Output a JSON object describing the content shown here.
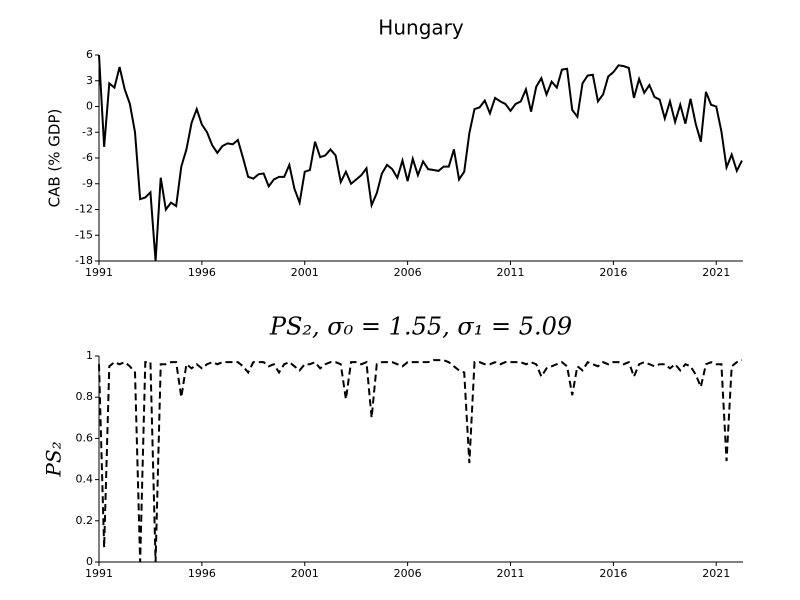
{
  "chart_data": [
    {
      "type": "line",
      "title": "Hungary",
      "ylabel": "CAB (% GDP)",
      "color": "#000000",
      "linestyle": "solid",
      "x": [
        1991,
        1991.25,
        1991.5,
        1991.75,
        1992,
        1992.25,
        1992.5,
        1992.75,
        1993,
        1993.25,
        1993.5,
        1993.75,
        1994,
        1994.25,
        1994.5,
        1994.75,
        1995,
        1995.25,
        1995.5,
        1995.75,
        1996,
        1996.25,
        1996.5,
        1996.75,
        1997,
        1997.25,
        1997.5,
        1997.75,
        1998,
        1998.25,
        1998.5,
        1998.75,
        1999,
        1999.25,
        1999.5,
        1999.75,
        2000,
        2000.25,
        2000.5,
        2000.75,
        2001,
        2001.25,
        2001.5,
        2001.75,
        2002,
        2002.25,
        2002.5,
        2002.75,
        2003,
        2003.25,
        2003.5,
        2003.75,
        2004,
        2004.25,
        2004.5,
        2004.75,
        2005,
        2005.25,
        2005.5,
        2005.75,
        2006,
        2006.25,
        2006.5,
        2006.75,
        2007,
        2007.25,
        2007.5,
        2007.75,
        2008,
        2008.25,
        2008.5,
        2008.75,
        2009,
        2009.25,
        2009.5,
        2009.75,
        2010,
        2010.25,
        2010.5,
        2010.75,
        2011,
        2011.25,
        2011.5,
        2011.75,
        2012,
        2012.25,
        2012.5,
        2012.75,
        2013,
        2013.25,
        2013.5,
        2013.75,
        2014,
        2014.25,
        2014.5,
        2014.75,
        2015,
        2015.25,
        2015.5,
        2015.75,
        2016,
        2016.25,
        2016.5,
        2016.75,
        2017,
        2017.25,
        2017.5,
        2017.75,
        2018,
        2018.25,
        2018.5,
        2018.75,
        2019,
        2019.25,
        2019.5,
        2019.75,
        2020,
        2020.25,
        2020.5,
        2020.75,
        2021,
        2021.25,
        2021.5,
        2021.75,
        2022,
        2022.25
      ],
      "values": [
        6,
        -4.7,
        2.7,
        2.2,
        4.6,
        2,
        0.3,
        -3,
        -10.8,
        -10.6,
        -10,
        -18,
        -8.3,
        -12,
        -11.2,
        -11.6,
        -7,
        -5,
        -1.9,
        -0.3,
        -2.1,
        -3,
        -4.5,
        -5.4,
        -4.6,
        -4.3,
        -4.4,
        -3.9,
        -6,
        -8.2,
        -8.4,
        -7.9,
        -7.8,
        -9.3,
        -8.5,
        -8.2,
        -8.2,
        -6.8,
        -9.6,
        -11.2,
        -7.6,
        -7.4,
        -4.1,
        -5.9,
        -5.7,
        -5,
        -5.7,
        -8.8,
        -7.6,
        -9,
        -8.5,
        -8,
        -7.2,
        -11.5,
        -10.1,
        -7.8,
        -6.8,
        -7.3,
        -8.3,
        -6.3,
        -8.7,
        -6.1,
        -8,
        -6.4,
        -7.3,
        -7.4,
        -7.5,
        -7,
        -7,
        -5,
        -8.5,
        -7.6,
        -3.1,
        -0.3,
        -0.1,
        0.7,
        -0.8,
        1,
        0.6,
        0.3,
        -0.5,
        0.3,
        0.6,
        2,
        -0.6,
        2.3,
        3.3,
        1.4,
        2.9,
        2.2,
        4.3,
        4.4,
        -0.4,
        -1.2,
        2.7,
        3.6,
        3.7,
        0.6,
        1.4,
        3.5,
        4,
        4.8,
        4.7,
        4.5,
        1,
        3.2,
        1.6,
        2.5,
        1.1,
        0.8,
        -1.4,
        0.6,
        -1.8,
        0.2,
        -2,
        0.9,
        -2,
        -4.1,
        1.7,
        0.2,
        0,
        -2.9,
        -7.1,
        -5.6,
        -7.5,
        -6.3
      ],
      "xlim": [
        1991,
        2022.3
      ],
      "ylim": [
        -18,
        6
      ],
      "xticks": [
        1991,
        1996,
        2001,
        2006,
        2011,
        2016,
        2021
      ],
      "yticks": [
        6,
        3,
        0,
        -3,
        -6,
        -9,
        -12,
        -15,
        -18
      ]
    },
    {
      "type": "line",
      "title": "PS₂, σ₀ = 1.55, σ₁ = 5.09",
      "ylabel": "PS₂",
      "color": "#000000",
      "linestyle": "dashed",
      "x": [
        1991,
        1991.25,
        1991.5,
        1991.75,
        1992,
        1992.25,
        1992.5,
        1992.75,
        1993,
        1993.25,
        1993.5,
        1993.75,
        1994,
        1994.25,
        1994.5,
        1994.75,
        1995,
        1995.25,
        1995.5,
        1995.75,
        1996,
        1996.25,
        1996.5,
        1996.75,
        1997,
        1997.25,
        1997.5,
        1997.75,
        1998,
        1998.25,
        1998.5,
        1998.75,
        1999,
        1999.25,
        1999.5,
        1999.75,
        2000,
        2000.25,
        2000.5,
        2000.75,
        2001,
        2001.25,
        2001.5,
        2001.75,
        2002,
        2002.25,
        2002.5,
        2002.75,
        2003,
        2003.25,
        2003.5,
        2003.75,
        2004,
        2004.25,
        2004.5,
        2004.75,
        2005,
        2005.25,
        2005.5,
        2005.75,
        2006,
        2006.25,
        2006.5,
        2006.75,
        2007,
        2007.25,
        2007.5,
        2007.75,
        2008,
        2008.25,
        2008.5,
        2008.75,
        2009,
        2009.25,
        2009.5,
        2009.75,
        2010,
        2010.25,
        2010.5,
        2010.75,
        2011,
        2011.25,
        2011.5,
        2011.75,
        2012,
        2012.25,
        2012.5,
        2012.75,
        2013,
        2013.25,
        2013.5,
        2013.75,
        2014,
        2014.25,
        2014.5,
        2014.75,
        2015,
        2015.25,
        2015.5,
        2015.75,
        2016,
        2016.25,
        2016.5,
        2016.75,
        2017,
        2017.25,
        2017.5,
        2017.75,
        2018,
        2018.25,
        2018.5,
        2018.75,
        2019,
        2019.25,
        2019.5,
        2019.75,
        2020,
        2020.25,
        2020.5,
        2020.75,
        2021,
        2021.25,
        2021.5,
        2021.75,
        2022,
        2022.25
      ],
      "values": [
        0.96,
        0.07,
        0.95,
        0.97,
        0.96,
        0.97,
        0.95,
        0.92,
        0,
        0.97,
        0.97,
        0,
        0.96,
        0.96,
        0.97,
        0.97,
        0.8,
        0.96,
        0.94,
        0.96,
        0.94,
        0.96,
        0.97,
        0.96,
        0.97,
        0.97,
        0.97,
        0.97,
        0.95,
        0.92,
        0.97,
        0.97,
        0.97,
        0.95,
        0.96,
        0.92,
        0.96,
        0.97,
        0.95,
        0.93,
        0.96,
        0.96,
        0.97,
        0.94,
        0.96,
        0.97,
        0.97,
        0.96,
        0.79,
        0.97,
        0.97,
        0.96,
        0.97,
        0.7,
        0.96,
        0.97,
        0.97,
        0.97,
        0.96,
        0.95,
        0.97,
        0.97,
        0.97,
        0.97,
        0.97,
        0.98,
        0.98,
        0.98,
        0.97,
        0.95,
        0.93,
        0.92,
        0.48,
        0.97,
        0.97,
        0.96,
        0.96,
        0.97,
        0.96,
        0.97,
        0.97,
        0.97,
        0.97,
        0.96,
        0.97,
        0.96,
        0.9,
        0.94,
        0.95,
        0.96,
        0.97,
        0.95,
        0.81,
        0.95,
        0.93,
        0.97,
        0.96,
        0.95,
        0.97,
        0.96,
        0.97,
        0.97,
        0.96,
        0.97,
        0.9,
        0.96,
        0.97,
        0.96,
        0.95,
        0.96,
        0.96,
        0.94,
        0.96,
        0.93,
        0.96,
        0.95,
        0.91,
        0.85,
        0.96,
        0.97,
        0.96,
        0.96,
        0.49,
        0.95,
        0.97,
        0.98
      ],
      "xlim": [
        1991,
        2022.3
      ],
      "ylim": [
        0,
        1
      ],
      "xticks": [
        1991,
        1996,
        2001,
        2006,
        2011,
        2016,
        2021
      ],
      "yticks": [
        0,
        0.2,
        0.4,
        0.6,
        0.8,
        1
      ]
    }
  ]
}
